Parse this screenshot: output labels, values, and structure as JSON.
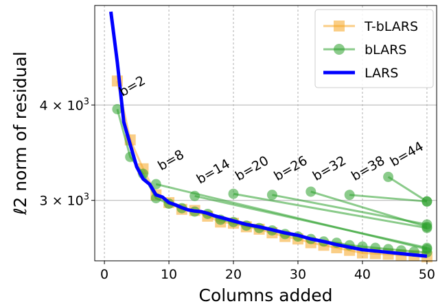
{
  "chart_data": {
    "type": "line",
    "xlabel": "Columns added",
    "ylabel": "ℓ2 norm of residual",
    "xlim": [
      -1.5,
      51.5
    ],
    "ylim": [
      2500,
      5400
    ],
    "yscale": "log",
    "x_ticks": [
      0,
      10,
      20,
      30,
      40,
      50
    ],
    "y_ticks": [
      {
        "value": 3000,
        "base": "3 × 10",
        "exp": "3"
      },
      {
        "value": 4000,
        "base": "4 × 10",
        "exp": "3"
      }
    ],
    "grid": true,
    "legend_position": "top-right",
    "colors": {
      "tblars": "#f5a623",
      "blars": "#2ca02c",
      "lars": "#0000ff"
    },
    "series": [
      {
        "name": "T-bLARS",
        "style": "squares",
        "x": [
          2,
          4,
          6,
          8,
          10,
          12,
          14,
          16,
          18,
          20,
          22,
          24,
          26,
          28,
          30,
          32,
          34,
          36,
          38,
          40,
          42,
          44,
          46,
          48,
          50
        ],
        "y": [
          4300,
          3600,
          3300,
          3050,
          2980,
          2920,
          2910,
          2860,
          2810,
          2800,
          2770,
          2750,
          2720,
          2690,
          2670,
          2640,
          2620,
          2600,
          2580,
          2560,
          2555,
          2550,
          2545,
          2540,
          2530
        ]
      },
      {
        "name": "bLARS",
        "style": "circles",
        "x": [
          2,
          4,
          6,
          8,
          10,
          12,
          14,
          16,
          18,
          20,
          22,
          24,
          26,
          28,
          30,
          32,
          34,
          36,
          38,
          40,
          42,
          44,
          46,
          48,
          50
        ],
        "y": [
          3950,
          3420,
          3250,
          3020,
          2970,
          2930,
          2900,
          2880,
          2830,
          2810,
          2780,
          2760,
          2740,
          2710,
          2690,
          2670,
          2650,
          2640,
          2620,
          2610,
          2600,
          2590,
          2580,
          2570,
          2565
        ],
        "branches": [
          {
            "b": 8,
            "from": [
              8,
              3150
            ],
            "to": [
              50,
              2590
            ]
          },
          {
            "b": 14,
            "from": [
              14,
              3040
            ],
            "to": [
              50,
              2600
            ]
          },
          {
            "b": 20,
            "from": [
              20,
              3060
            ],
            "to": [
              50,
              2760
            ]
          },
          {
            "b": 26,
            "from": [
              26,
              3050
            ],
            "to": [
              50,
              2790
            ]
          },
          {
            "b": 32,
            "from": [
              32,
              3080
            ],
            "to": [
              50,
              2770
            ]
          },
          {
            "b": 38,
            "from": [
              38,
              3050
            ],
            "to": [
              50,
              2990
            ]
          },
          {
            "b": 44,
            "from": [
              44,
              3220
            ],
            "to": [
              50,
              2990
            ]
          }
        ]
      },
      {
        "name": "LARS",
        "style": "line",
        "x": [
          1,
          2,
          3,
          4,
          5,
          6,
          7,
          8,
          9,
          10,
          11,
          12,
          13,
          14,
          15,
          16,
          17,
          18,
          19,
          20,
          22,
          24,
          26,
          28,
          30,
          32,
          34,
          36,
          38,
          40,
          42,
          44,
          46,
          48,
          50
        ],
        "y": [
          5300,
          4550,
          3800,
          3550,
          3320,
          3200,
          3150,
          3050,
          3030,
          2980,
          2960,
          2935,
          2915,
          2905,
          2900,
          2885,
          2865,
          2850,
          2835,
          2820,
          2790,
          2770,
          2745,
          2720,
          2700,
          2670,
          2650,
          2625,
          2605,
          2585,
          2575,
          2565,
          2555,
          2545,
          2535
        ]
      }
    ],
    "annotations": [
      {
        "text": "b=2",
        "x": 2.8,
        "y": 4100
      },
      {
        "text": "b=8",
        "x": 8.8,
        "y": 3280
      },
      {
        "text": "b=14",
        "x": 14.8,
        "y": 3150
      },
      {
        "text": "b=20",
        "x": 20.8,
        "y": 3180
      },
      {
        "text": "b=26",
        "x": 26.8,
        "y": 3180
      },
      {
        "text": "b=32",
        "x": 32.8,
        "y": 3180
      },
      {
        "text": "b=38",
        "x": 38.8,
        "y": 3180
      },
      {
        "text": "b=44",
        "x": 44.8,
        "y": 3320
      }
    ]
  }
}
